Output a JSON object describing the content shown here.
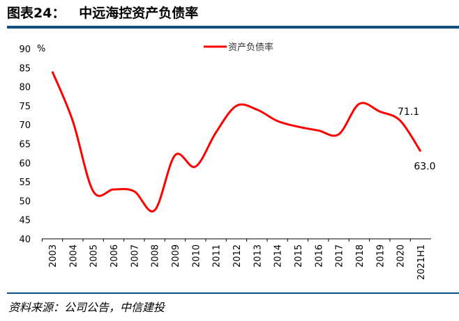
{
  "title": "图表24：   中远海控资产负债率",
  "source": "资料来源：公司公告，中信建投",
  "chart_data": {
    "type": "line",
    "unit_label": "%",
    "categories": [
      "2003",
      "2004",
      "2005",
      "2006",
      "2007",
      "2008",
      "2009",
      "2010",
      "2011",
      "2012",
      "2013",
      "2014",
      "2015",
      "2016",
      "2017",
      "2018",
      "2019",
      "2020",
      "2021H1"
    ],
    "series": [
      {
        "name": "资产负债率",
        "color": "#ff0000",
        "values": [
          84,
          71,
          52.5,
          53,
          52.5,
          47.5,
          62,
          59,
          68,
          75,
          74,
          71,
          69.5,
          68.5,
          67.5,
          75.5,
          73.5,
          71.1,
          63.0
        ]
      }
    ],
    "data_labels": [
      {
        "category": "2020",
        "text": "71.1"
      },
      {
        "category": "2021H1",
        "text": "63.0"
      }
    ],
    "ylim": [
      40,
      90
    ],
    "yticks": [
      40,
      45,
      50,
      55,
      60,
      65,
      70,
      75,
      80,
      85,
      90
    ],
    "grid": false,
    "legend": "top-center"
  }
}
